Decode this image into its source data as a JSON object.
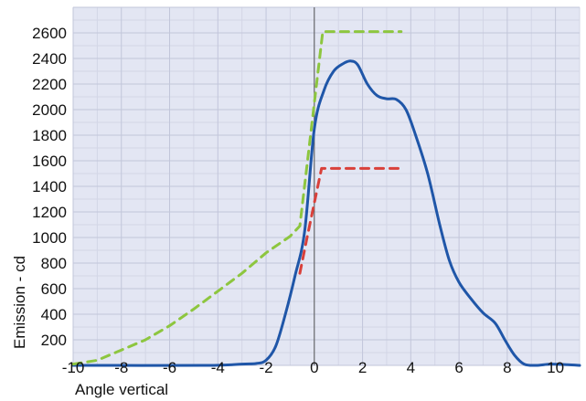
{
  "chart_data": {
    "type": "line",
    "title": "",
    "xlabel": "Angle vertical",
    "ylabel": "Emission - cd",
    "xlim": [
      -10,
      11
    ],
    "ylim": [
      0,
      2800
    ],
    "x_ticks": [
      -10,
      -8,
      -6,
      -4,
      -2,
      0,
      2,
      4,
      6,
      8,
      10
    ],
    "y_ticks": [
      200,
      400,
      600,
      800,
      1000,
      1200,
      1400,
      1600,
      1800,
      2000,
      2200,
      2400,
      2600
    ],
    "grid": true,
    "series": [
      {
        "style": "solid",
        "color": "#1f56a8",
        "points": [
          [
            -10,
            0
          ],
          [
            -4.5,
            0
          ],
          [
            -3,
            10
          ],
          [
            -2.4,
            15
          ],
          [
            -2,
            40
          ],
          [
            -1.6,
            150
          ],
          [
            -1.2,
            400
          ],
          [
            -0.8,
            700
          ],
          [
            -0.4,
            1050
          ],
          [
            0,
            1850
          ],
          [
            0.4,
            2150
          ],
          [
            0.8,
            2300
          ],
          [
            1.2,
            2360
          ],
          [
            1.5,
            2380
          ],
          [
            1.8,
            2350
          ],
          [
            2.2,
            2200
          ],
          [
            2.6,
            2110
          ],
          [
            3.0,
            2085
          ],
          [
            3.4,
            2080
          ],
          [
            3.8,
            2000
          ],
          [
            4.2,
            1800
          ],
          [
            4.7,
            1500
          ],
          [
            5.2,
            1100
          ],
          [
            5.6,
            820
          ],
          [
            6.0,
            650
          ],
          [
            6.5,
            520
          ],
          [
            7.0,
            410
          ],
          [
            7.5,
            330
          ],
          [
            7.9,
            200
          ],
          [
            8.3,
            80
          ],
          [
            8.7,
            10
          ],
          [
            9.2,
            0
          ],
          [
            9.8,
            10
          ],
          [
            10.5,
            5
          ],
          [
            11,
            0
          ]
        ]
      },
      {
        "style": "dashed",
        "color": "#8dc63f",
        "points": [
          [
            -10,
            10
          ],
          [
            -9,
            40
          ],
          [
            -8,
            120
          ],
          [
            -7,
            200
          ],
          [
            -6,
            310
          ],
          [
            -5,
            440
          ],
          [
            -4,
            580
          ],
          [
            -3,
            720
          ],
          [
            -2,
            880
          ],
          [
            -1,
            1010
          ],
          [
            -0.6,
            1090
          ],
          [
            0.35,
            2610
          ],
          [
            3.6,
            2610
          ]
        ]
      },
      {
        "style": "dashed",
        "color": "#d9403a",
        "points": [
          [
            -0.6,
            720
          ],
          [
            -0.3,
            1000
          ],
          [
            0.3,
            1540
          ],
          [
            3.5,
            1540
          ]
        ]
      }
    ]
  }
}
